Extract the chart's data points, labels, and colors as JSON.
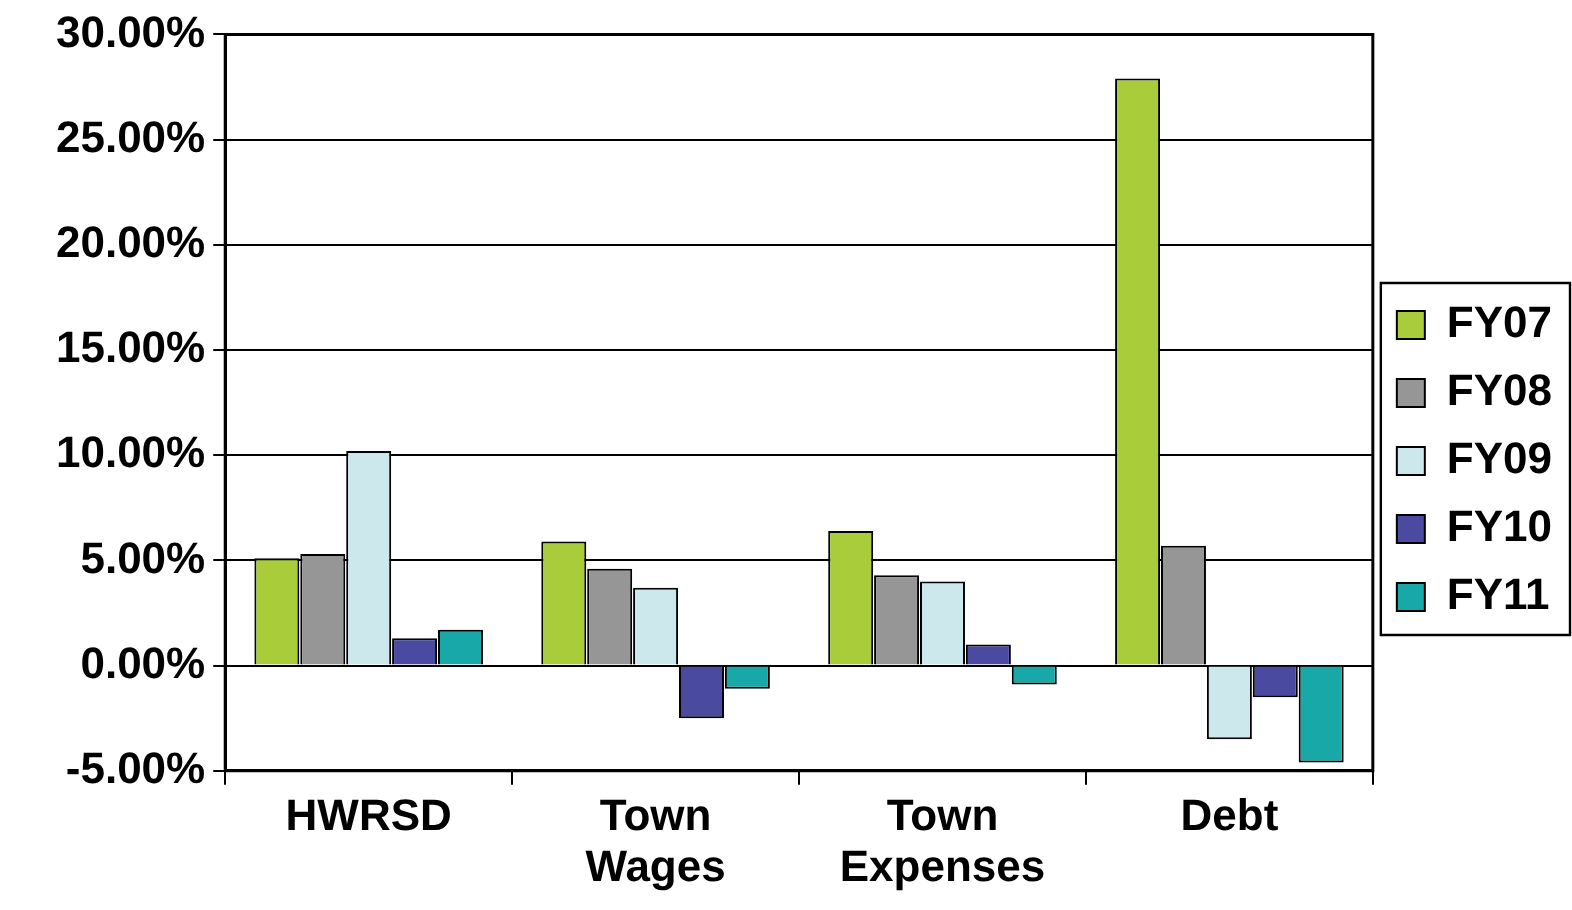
{
  "chart_data": {
    "type": "bar",
    "categories": [
      "HWRSD",
      "Town Wages",
      "Town Expenses",
      "Debt"
    ],
    "series": [
      {
        "name": "FY07",
        "color": "#a8cc3a",
        "values": [
          5.1,
          5.9,
          6.4,
          27.9
        ]
      },
      {
        "name": "FY08",
        "color": "#969696",
        "values": [
          5.3,
          4.6,
          4.3,
          5.7
        ]
      },
      {
        "name": "FY09",
        "color": "#cce8ec",
        "values": [
          10.2,
          3.7,
          4.0,
          -3.5
        ]
      },
      {
        "name": "FY10",
        "color": "#4a4aa0",
        "values": [
          1.3,
          -2.5,
          1.0,
          -1.5
        ]
      },
      {
        "name": "FY11",
        "color": "#18a8a8",
        "values": [
          1.7,
          -1.1,
          -0.9,
          -4.6
        ]
      }
    ],
    "ylim": [
      -5,
      30
    ],
    "yticks": [
      {
        "value": -5,
        "label": "-5.00%"
      },
      {
        "value": 0,
        "label": "0.00%"
      },
      {
        "value": 5,
        "label": "5.00%"
      },
      {
        "value": 10,
        "label": "10.00%"
      },
      {
        "value": 15,
        "label": "15.00%"
      },
      {
        "value": 20,
        "label": "20.00%"
      },
      {
        "value": 25,
        "label": "25.00%"
      },
      {
        "value": 30,
        "label": "30.00%"
      }
    ],
    "grid": "y",
    "legend": "right"
  }
}
